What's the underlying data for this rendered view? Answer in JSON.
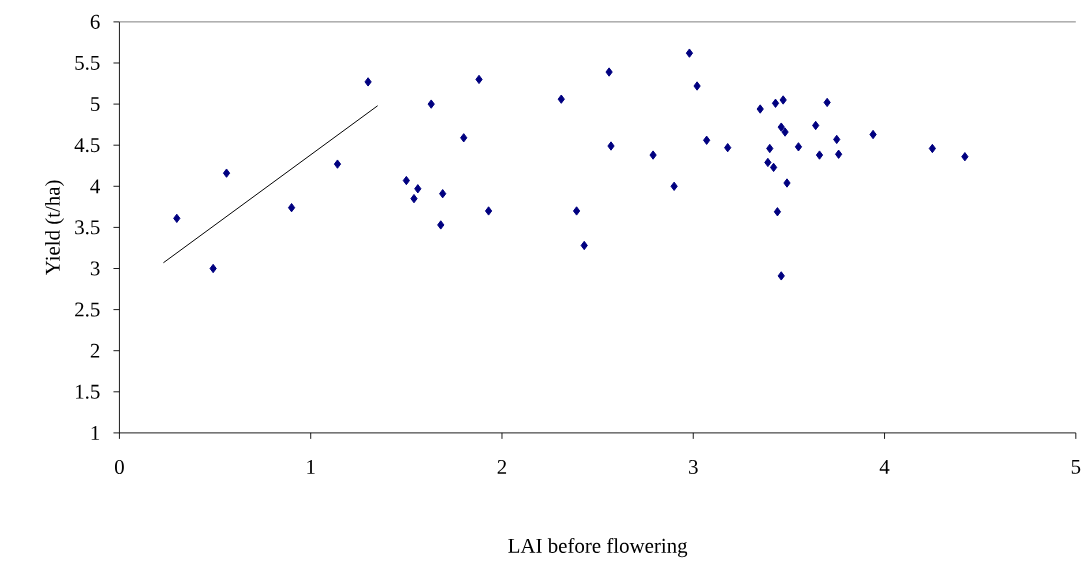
{
  "chart_data": {
    "type": "scatter",
    "xlabel": "LAI before flowering",
    "ylabel": "Yield (t/ha)",
    "xlim": [
      0,
      5
    ],
    "xticks": [
      0,
      1,
      2,
      3,
      4,
      5
    ],
    "ylim": [
      1,
      6
    ],
    "yticks": [
      1,
      1.5,
      2,
      2.5,
      3,
      3.5,
      4,
      4.5,
      5,
      5.5,
      6
    ],
    "grid": false,
    "series": [
      {
        "marker": "diamond",
        "color": "#000080",
        "x": [
          0.3,
          0.49,
          0.56,
          0.9,
          1.14,
          1.3,
          1.63,
          1.88,
          1.8,
          1.5,
          1.56,
          1.54,
          1.69,
          1.68,
          1.93,
          2.31,
          2.56,
          2.98,
          3.02,
          2.57,
          2.79,
          3.07,
          3.18,
          2.9,
          2.39,
          2.43,
          3.35,
          3.43,
          3.47,
          3.7,
          3.64,
          3.46,
          3.48,
          3.4,
          3.55,
          3.75,
          3.66,
          3.76,
          3.94,
          4.25,
          4.42,
          3.39,
          3.42,
          3.49,
          3.44,
          3.46
        ],
        "values": [
          3.61,
          3.0,
          4.16,
          3.74,
          4.27,
          5.27,
          5.0,
          5.3,
          4.59,
          4.07,
          3.97,
          3.85,
          3.91,
          3.53,
          3.7,
          5.06,
          5.39,
          5.62,
          5.22,
          4.49,
          4.38,
          4.56,
          4.47,
          4.0,
          3.7,
          3.28,
          4.94,
          5.01,
          5.05,
          5.02,
          4.74,
          4.72,
          4.66,
          4.46,
          4.48,
          4.57,
          4.38,
          4.39,
          4.63,
          4.46,
          4.36,
          4.29,
          4.23,
          4.04,
          3.69,
          2.91
        ]
      },
      {
        "type": "line",
        "marker": "none",
        "line_style": "solid",
        "color": "#000000",
        "x": [
          0.23,
          1.35
        ],
        "values": [
          3.07,
          4.98
        ]
      }
    ]
  }
}
